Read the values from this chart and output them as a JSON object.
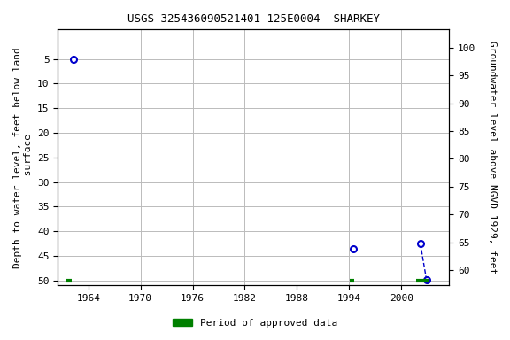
{
  "title": "USGS 325436090521401 125E0004  SHARKEY",
  "ylabel_left": "Depth to water level, feet below land\n surface",
  "ylabel_right": "Groundwater level above NGVD 1929, feet",
  "xlim": [
    1960.5,
    2005.5
  ],
  "ylim_left": [
    51,
    -1
  ],
  "ylim_right": [
    57.25,
    103.25
  ],
  "yticks_left": [
    5,
    10,
    15,
    20,
    25,
    30,
    35,
    40,
    45,
    50
  ],
  "yticks_right": [
    60,
    65,
    70,
    75,
    80,
    85,
    90,
    95,
    100
  ],
  "xticks": [
    1964,
    1970,
    1976,
    1982,
    1988,
    1994,
    2000
  ],
  "background_color": "#ffffff",
  "plot_bg_color": "#ffffff",
  "grid_color": "#bbbbbb",
  "data_points": [
    {
      "year": 1962.3,
      "depth": 5.0
    },
    {
      "year": 1994.5,
      "depth": 43.5
    },
    {
      "year": 2002.2,
      "depth": 42.5
    },
    {
      "year": 2002.9,
      "depth": 49.8
    }
  ],
  "approved_periods": [
    {
      "start": 1961.5,
      "end": 1962.1
    },
    {
      "start": 1994.1,
      "end": 1994.6
    },
    {
      "start": 2001.7,
      "end": 2003.2
    }
  ],
  "point_color": "#0000cc",
  "approved_color": "#008000",
  "legend_label": "Period of approved data",
  "dashed_segments": [
    [
      2002.2,
      42.5,
      2002.9,
      49.8
    ]
  ],
  "title_fontsize": 9,
  "axis_fontsize": 8,
  "tick_fontsize": 8,
  "legend_fontsize": 8,
  "marker_size": 5,
  "approved_linewidth": 3
}
